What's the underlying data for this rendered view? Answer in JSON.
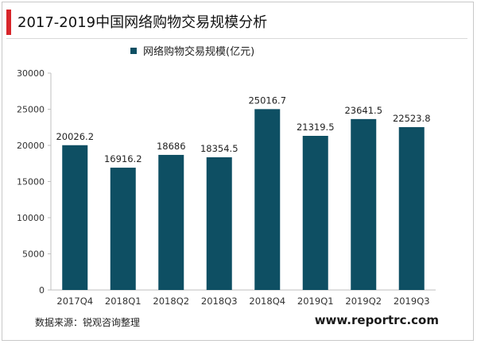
{
  "header": {
    "title": "2017-2019中国网络购物交易规模分析"
  },
  "footer": {
    "source": "数据来源：锐观咨询整理",
    "website": "www.reportrc.com"
  },
  "colors": {
    "bar": "#0e4f63",
    "accent": "#d8262b"
  },
  "chart_data": {
    "type": "bar",
    "title": "2017-2019中国网络购物交易规模分析",
    "categories": [
      "2017Q4",
      "2018Q1",
      "2018Q2",
      "2018Q3",
      "2018Q4",
      "2019Q1",
      "2019Q2",
      "2019Q3"
    ],
    "series": [
      {
        "name": "网络购物交易规模(亿元)",
        "values": [
          20026.2,
          16916.2,
          18686,
          18354.5,
          25016.7,
          21319.5,
          23641.5,
          22523.8
        ],
        "labels": [
          "20026.2",
          "16916.2",
          "18686",
          "18354.5",
          "25016.7",
          "21319.5",
          "23641.5",
          "22523.8"
        ]
      }
    ],
    "ylim": [
      0,
      30000
    ],
    "yticks": [
      0,
      5000,
      10000,
      15000,
      20000,
      25000,
      30000
    ],
    "ytick_labels": [
      "0",
      "5000",
      "10000",
      "15000",
      "20000",
      "25000",
      "30000"
    ],
    "grid": false,
    "legend": "top"
  }
}
